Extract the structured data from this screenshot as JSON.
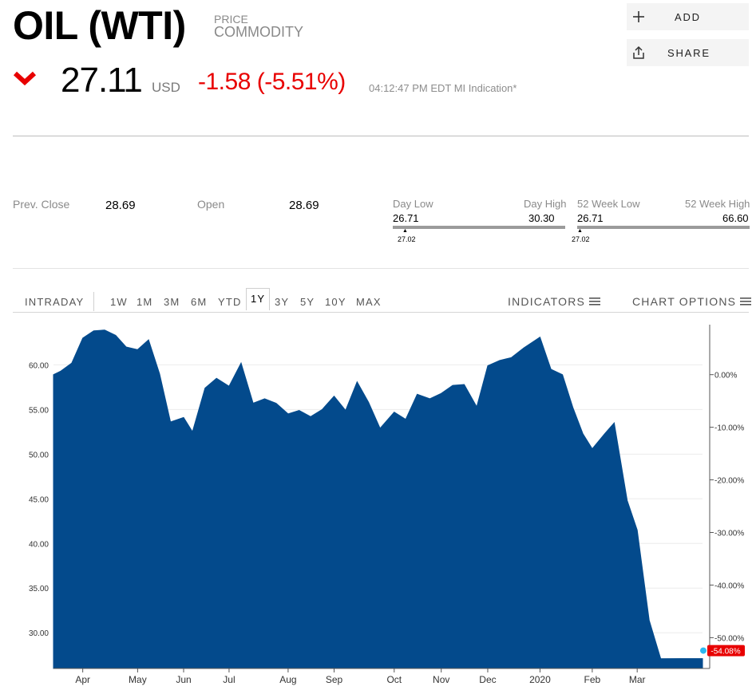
{
  "header": {
    "title": "OIL (WTI)",
    "type_label": "PRICE",
    "category_label": "COMMODITY",
    "price": "27.11",
    "currency": "USD",
    "change": "-1.58 (-5.51%)",
    "timestamp": "04:12:47 PM EDT MI Indication*",
    "colors": {
      "negative": "#e80000",
      "area": "#034a8c"
    }
  },
  "actions": {
    "add_label": "ADD",
    "share_label": "SHARE"
  },
  "stats": {
    "prev_close_label": "Prev. Close",
    "prev_close": "28.69",
    "open_label": "Open",
    "open": "28.69",
    "day_low_label": "Day Low",
    "day_high_label": "Day High",
    "day_low": "26.71",
    "day_high": "30.30",
    "day_marker": "27.02",
    "week52_low_label": "52 Week Low",
    "week52_high_label": "52 Week High",
    "week52_low": "26.71",
    "week52_high": "66.60",
    "week52_marker": "27.02"
  },
  "tabs": {
    "intraday": "INTRADAY",
    "1w": "1W",
    "1m": "1M",
    "3m": "3M",
    "6m": "6M",
    "ytd": "YTD",
    "1y": "1Y",
    "3y": "3Y",
    "5y": "5Y",
    "10y": "10Y",
    "max": "MAX",
    "selected": "1Y",
    "indicators": "INDICATORS",
    "chart_options": "CHART OPTIONS"
  },
  "chart_data": {
    "type": "area",
    "xlabel": "",
    "ylabel": "",
    "ylim": [
      26.0,
      64.5
    ],
    "y_ticks": [
      "30.00",
      "35.00",
      "40.00",
      "45.00",
      "50.00",
      "55.00",
      "60.00"
    ],
    "y_tick_values": [
      30,
      35,
      40,
      45,
      50,
      55,
      60
    ],
    "pct_ticks": [
      "0.00%",
      "-10.00%",
      "-20.00%",
      "-30.00%",
      "-40.00%",
      "-50.00%"
    ],
    "pct_tick_values": [
      0,
      -10,
      -20,
      -30,
      -40,
      -50
    ],
    "last_label": "-54.08%",
    "x_ticks": [
      {
        "label": "Apr",
        "x": 0.06
      },
      {
        "label": "May",
        "x": 1.11
      },
      {
        "label": "Jun",
        "x": 1.99
      },
      {
        "label": "Jul",
        "x": 2.86
      },
      {
        "label": "Aug",
        "x": 3.99
      },
      {
        "label": "Sep",
        "x": 4.87
      },
      {
        "label": "Oct",
        "x": 6.02
      },
      {
        "label": "Nov",
        "x": 6.92
      },
      {
        "label": "Dec",
        "x": 7.81
      },
      {
        "label": "2020",
        "x": 8.81
      },
      {
        "label": "Feb",
        "x": 9.81
      },
      {
        "label": "Mar",
        "x": 10.67
      }
    ],
    "x_range": [
      -0.5,
      11.92
    ],
    "x": [
      -0.5,
      -0.36,
      -0.15,
      0.06,
      0.27,
      0.48,
      0.69,
      0.89,
      1.11,
      1.32,
      1.53,
      1.74,
      1.99,
      2.16,
      2.4,
      2.62,
      2.86,
      3.09,
      3.32,
      3.54,
      3.76,
      3.99,
      4.2,
      4.42,
      4.64,
      4.87,
      5.09,
      5.31,
      5.53,
      5.75,
      6.02,
      6.24,
      6.46,
      6.7,
      6.92,
      7.14,
      7.36,
      7.6,
      7.81,
      8.04,
      8.26,
      8.5,
      8.81,
      9.02,
      9.24,
      9.44,
      9.63,
      9.81,
      10.05,
      10.23,
      10.48,
      10.67,
      10.9,
      11.12,
      11.48,
      11.7,
      11.92
    ],
    "values": [
      58.9,
      59.3,
      60.2,
      63.0,
      63.8,
      63.9,
      63.3,
      62.0,
      61.7,
      62.8,
      59.0,
      53.6,
      54.1,
      52.5,
      57.4,
      58.5,
      57.6,
      60.2,
      55.7,
      56.2,
      55.7,
      54.5,
      54.9,
      54.2,
      55.0,
      56.5,
      54.9,
      58.1,
      55.8,
      52.9,
      54.7,
      53.9,
      56.7,
      56.2,
      56.8,
      57.7,
      57.8,
      55.3,
      59.9,
      60.5,
      60.8,
      61.9,
      63.1,
      59.5,
      58.9,
      55.2,
      52.3,
      50.6,
      52.3,
      53.5,
      44.8,
      41.5,
      31.4,
      27.1,
      27.11,
      27.11,
      27.11
    ]
  }
}
